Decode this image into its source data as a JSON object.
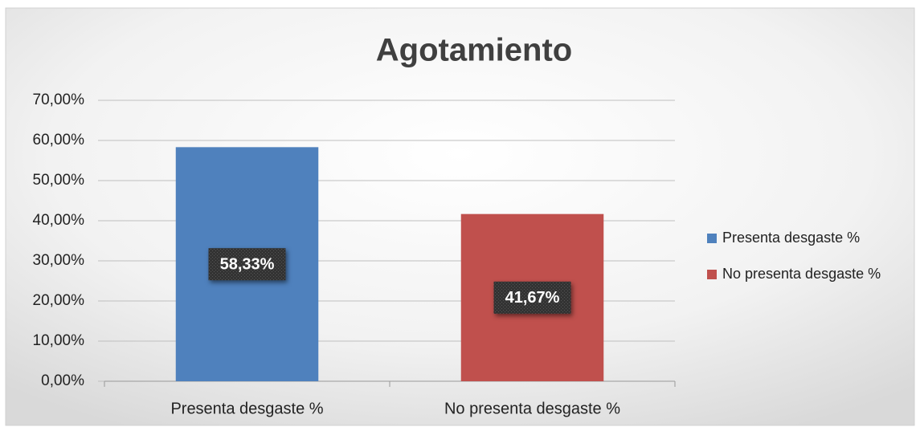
{
  "chart_data": {
    "type": "bar",
    "title": "Agotamiento",
    "categories": [
      "Presenta desgaste %",
      "No presenta desgaste %"
    ],
    "values": [
      58.33,
      41.67
    ],
    "value_labels": [
      "58,33%",
      "41,67%"
    ],
    "colors": [
      "#4f81bd",
      "#c0504d"
    ],
    "ylim": [
      0,
      70
    ],
    "yticks": [
      {
        "value": 0,
        "label": "0,00%"
      },
      {
        "value": 10,
        "label": "10,00%"
      },
      {
        "value": 20,
        "label": "20,00%"
      },
      {
        "value": 30,
        "label": "30,00%"
      },
      {
        "value": 40,
        "label": "40,00%"
      },
      {
        "value": 50,
        "label": "50,00%"
      },
      {
        "value": 60,
        "label": "60,00%"
      },
      {
        "value": 70,
        "label": "70,00%"
      }
    ],
    "grid": true,
    "legend": "right"
  }
}
